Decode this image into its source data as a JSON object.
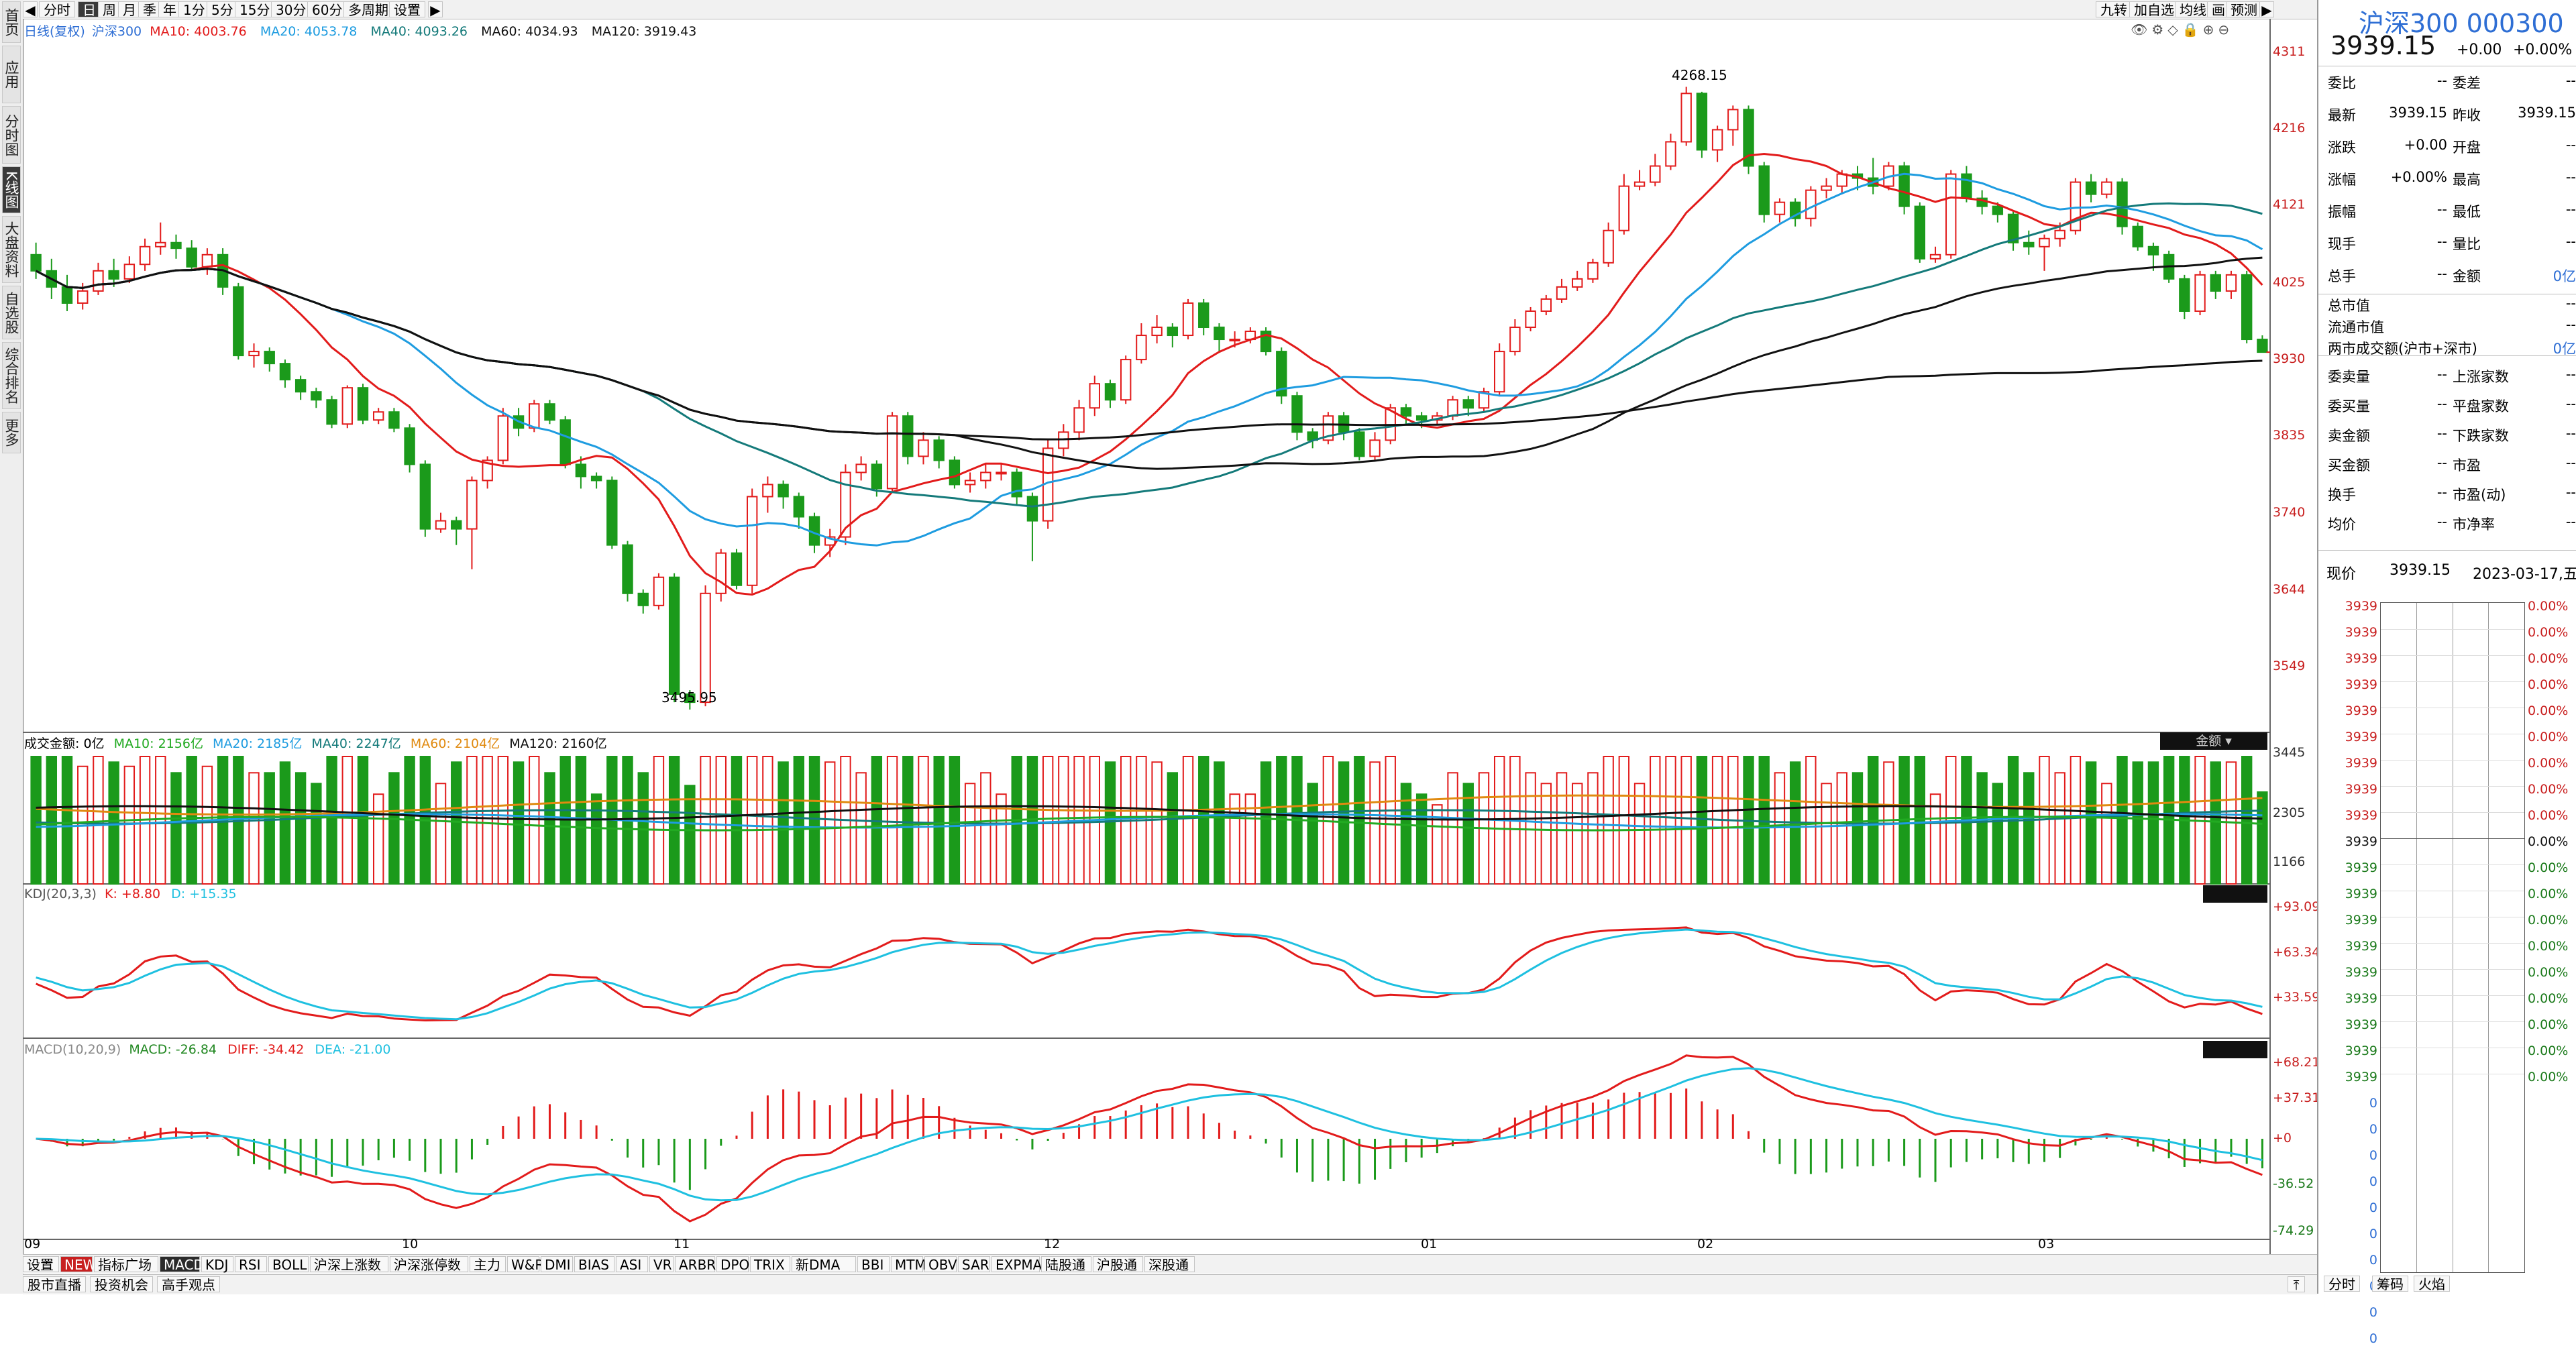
{
  "sidebar": {
    "items": [
      {
        "label": "首页"
      },
      {
        "label": "应用"
      },
      {
        "label": "分时图"
      },
      {
        "label": "K线图"
      },
      {
        "label": "大盘资料"
      },
      {
        "label": "自选股"
      },
      {
        "label": "综合排名"
      },
      {
        "label": "更多"
      }
    ]
  },
  "toolbar": {
    "left": [
      "分时",
      "日",
      "周",
      "月",
      "季",
      "年",
      "1分",
      "5分",
      "15分",
      "30分",
      "60分",
      "多周期",
      "设置"
    ],
    "right": [
      "九转",
      "加自选",
      "均线",
      "画",
      "预测"
    ]
  },
  "main_chart": {
    "header": {
      "mode": "日线(复权)",
      "name": "沪深300",
      "ma10": "MA10: 4003.76",
      "ma20": "MA20: 4053.78",
      "ma40": "MA40: 4093.26",
      "ma60": "MA60: 4034.93",
      "ma120": "MA120: 3919.43"
    },
    "high_label": "4268.15",
    "low_label": "3495.95",
    "y_ticks": [
      "4311",
      "4216",
      "4121",
      "4025",
      "3930",
      "3835",
      "3740",
      "3644",
      "3549"
    ],
    "last_price_label": "3939.15"
  },
  "volume_panel": {
    "header": {
      "title": "成交金额: 0亿",
      "ma10": "MA10: 2156亿",
      "ma20": "MA20: 2185亿",
      "ma40": "MA40: 2247亿",
      "ma60": "MA60: 2104亿",
      "ma120": "MA120: 2160亿"
    },
    "button": "金额",
    "y_ticks": [
      "3445",
      "2305",
      "1166"
    ]
  },
  "kdj_panel": {
    "header": {
      "title": "KDJ(20,3,3)",
      "k": "K: +8.80",
      "d": "D: +15.35"
    },
    "y_ticks": [
      "+93.09",
      "+63.34",
      "+33.59"
    ]
  },
  "macd_panel": {
    "header": {
      "title": "MACD(10,20,9)",
      "macd": "MACD: -26.84",
      "diff": "DIFF: -34.42",
      "dea": "DEA: -21.00"
    },
    "y_ticks": [
      "+68.21",
      "+37.31",
      "+0",
      "-36.52",
      "-74.29"
    ]
  },
  "x_axis": [
    "09",
    "10",
    "11",
    "12",
    "01",
    "02",
    "03"
  ],
  "indicator_tabs": [
    "设置",
    "NEW",
    "指标广场",
    "MACD",
    "KDJ",
    "RSI",
    "BOLL",
    "沪深上涨数",
    "沪深涨停数",
    "主力",
    "W&R",
    "DMI",
    "BIAS",
    "ASI",
    "VR",
    "ARBR",
    "DPO",
    "TRIX",
    "新DMA",
    "BBI",
    "MTM",
    "OBV",
    "SAR",
    "EXPMA",
    "陆股通",
    "沪股通",
    "深股通"
  ],
  "bottom_bar": [
    "股市直播",
    "投资机会",
    "高手观点"
  ],
  "right_panel": {
    "title": "沪深300 000300",
    "price": "3939.15",
    "change": "+0.00",
    "change_pct": "+0.00%",
    "rows": [
      {
        "l1": "委比",
        "v1": "--",
        "l2": "委差",
        "v2": "--"
      },
      {
        "l1": "最新",
        "v1": "3939.15",
        "l2": "昨收",
        "v2": "3939.15"
      },
      {
        "l1": "涨跌",
        "v1": "+0.00",
        "l2": "开盘",
        "v2": "--"
      },
      {
        "l1": "涨幅",
        "v1": "+0.00%",
        "l2": "最高",
        "v2": "--"
      },
      {
        "l1": "振幅",
        "v1": "--",
        "l2": "最低",
        "v2": "--"
      },
      {
        "l1": "现手",
        "v1": "--",
        "l2": "量比",
        "v2": "--"
      },
      {
        "l1": "总手",
        "v1": "--",
        "l2": "金额",
        "v2": "0亿"
      }
    ],
    "rows2": [
      {
        "l": "总市值",
        "v": "--"
      },
      {
        "l": "流通市值",
        "v": "--"
      },
      {
        "l": "两市成交额(沪市+深市)",
        "v": "0亿"
      }
    ],
    "rows3": [
      {
        "l1": "委卖量",
        "v1": "--",
        "l2": "上涨家数",
        "v2": "--"
      },
      {
        "l1": "委买量",
        "v1": "--",
        "l2": "平盘家数",
        "v2": "--"
      },
      {
        "l1": "卖金额",
        "v1": "--",
        "l2": "下跌家数",
        "v2": "--"
      },
      {
        "l1": "买金额",
        "v1": "--",
        "l2": "市盈",
        "v2": "--"
      },
      {
        "l1": "换手",
        "v1": "--",
        "l2": "市盈(动)",
        "v2": "--"
      },
      {
        "l1": "均价",
        "v1": "--",
        "l2": "市净率",
        "v2": "--"
      }
    ],
    "mini_header": {
      "label": "现价",
      "price": "3939.15",
      "date": "2023-03-17,五"
    },
    "mini_left_ticks": [
      "3939",
      "3939",
      "3939",
      "3939",
      "3939",
      "3939",
      "3939",
      "3939",
      "3939",
      "3939",
      "3939",
      "3939",
      "3939",
      "3939",
      "3939",
      "3939",
      "3939",
      "3939",
      "3939",
      "0",
      "0",
      "0",
      "0",
      "0",
      "0",
      "0",
      "0",
      "0",
      "0"
    ],
    "mini_right_ticks": [
      "0.00%",
      "0.00%",
      "0.00%",
      "0.00%",
      "0.00%",
      "0.00%",
      "0.00%",
      "0.00%",
      "0.00%",
      "0.00%",
      "0.00%",
      "0.00%",
      "0.00%",
      "0.00%",
      "0.00%",
      "0.00%",
      "0.00%",
      "0.00%",
      "0.00%"
    ],
    "bottom_tabs": [
      "分时",
      "筹码",
      "火焰"
    ]
  },
  "chart_data": {
    "type": "candlestick",
    "x_months": [
      "09",
      "10",
      "11",
      "12",
      "01",
      "02",
      "03"
    ],
    "ylim": [
      3495.95,
      4311
    ],
    "candles": [
      [
        4060,
        4040,
        4075,
        4030
      ],
      [
        4040,
        4020,
        4055,
        4005
      ],
      [
        4020,
        4000,
        4035,
        3990
      ],
      [
        4000,
        4015,
        4025,
        3992
      ],
      [
        4015,
        4040,
        4050,
        4010
      ],
      [
        4040,
        4030,
        4055,
        4020
      ],
      [
        4030,
        4048,
        4058,
        4025
      ],
      [
        4048,
        4070,
        4080,
        4040
      ],
      [
        4070,
        4075,
        4100,
        4060
      ],
      [
        4075,
        4068,
        4085,
        4055
      ],
      [
        4068,
        4045,
        4078,
        4040
      ],
      [
        4045,
        4060,
        4068,
        4035
      ],
      [
        4060,
        4020,
        4068,
        4010
      ],
      [
        4020,
        3935,
        4025,
        3930
      ],
      [
        3935,
        3940,
        3950,
        3920
      ],
      [
        3940,
        3925,
        3945,
        3915
      ],
      [
        3925,
        3905,
        3930,
        3895
      ],
      [
        3905,
        3890,
        3910,
        3880
      ],
      [
        3890,
        3880,
        3895,
        3870
      ],
      [
        3880,
        3850,
        3885,
        3845
      ],
      [
        3850,
        3895,
        3898,
        3845
      ],
      [
        3895,
        3855,
        3900,
        3850
      ],
      [
        3855,
        3865,
        3870,
        3850
      ],
      [
        3865,
        3845,
        3870,
        3840
      ],
      [
        3845,
        3800,
        3850,
        3790
      ],
      [
        3800,
        3720,
        3805,
        3710
      ],
      [
        3720,
        3730,
        3740,
        3715
      ],
      [
        3730,
        3720,
        3735,
        3700
      ],
      [
        3720,
        3780,
        3785,
        3670
      ],
      [
        3780,
        3805,
        3810,
        3770
      ],
      [
        3805,
        3860,
        3870,
        3800
      ],
      [
        3860,
        3845,
        3870,
        3835
      ],
      [
        3845,
        3875,
        3880,
        3840
      ],
      [
        3875,
        3855,
        3880,
        3850
      ],
      [
        3855,
        3800,
        3860,
        3795
      ],
      [
        3800,
        3785,
        3810,
        3770
      ],
      [
        3785,
        3780,
        3790,
        3770
      ],
      [
        3780,
        3700,
        3785,
        3695
      ],
      [
        3700,
        3640,
        3705,
        3630
      ],
      [
        3640,
        3625,
        3645,
        3615
      ],
      [
        3625,
        3660,
        3665,
        3620
      ],
      [
        3660,
        3515,
        3665,
        3505
      ],
      [
        3515,
        3505,
        3520,
        3495.95
      ],
      [
        3505,
        3640,
        3650,
        3500
      ],
      [
        3640,
        3690,
        3695,
        3630
      ],
      [
        3690,
        3650,
        3695,
        3645
      ],
      [
        3650,
        3760,
        3770,
        3640
      ],
      [
        3760,
        3775,
        3785,
        3740
      ],
      [
        3775,
        3760,
        3780,
        3745
      ],
      [
        3760,
        3735,
        3765,
        3720
      ],
      [
        3735,
        3700,
        3740,
        3690
      ],
      [
        3700,
        3710,
        3720,
        3685
      ],
      [
        3710,
        3790,
        3800,
        3700
      ],
      [
        3790,
        3800,
        3810,
        3780
      ],
      [
        3800,
        3770,
        3805,
        3760
      ],
      [
        3770,
        3860,
        3865,
        3765
      ],
      [
        3860,
        3810,
        3865,
        3800
      ],
      [
        3810,
        3830,
        3840,
        3800
      ],
      [
        3830,
        3805,
        3835,
        3795
      ],
      [
        3805,
        3775,
        3810,
        3770
      ],
      [
        3775,
        3780,
        3790,
        3765
      ],
      [
        3780,
        3790,
        3800,
        3770
      ],
      [
        3790,
        3790,
        3800,
        3780
      ],
      [
        3790,
        3760,
        3795,
        3750
      ],
      [
        3760,
        3730,
        3765,
        3680
      ],
      [
        3730,
        3820,
        3830,
        3720
      ],
      [
        3820,
        3840,
        3850,
        3810
      ],
      [
        3840,
        3870,
        3880,
        3830
      ],
      [
        3870,
        3900,
        3910,
        3860
      ],
      [
        3900,
        3880,
        3905,
        3870
      ],
      [
        3880,
        3930,
        3935,
        3875
      ],
      [
        3930,
        3960,
        3975,
        3925
      ],
      [
        3960,
        3970,
        3985,
        3950
      ],
      [
        3970,
        3960,
        3975,
        3945
      ],
      [
        3960,
        4000,
        4005,
        3955
      ],
      [
        4000,
        3970,
        4005,
        3960
      ],
      [
        3970,
        3955,
        3975,
        3940
      ],
      [
        3955,
        3955,
        3965,
        3945
      ],
      [
        3955,
        3965,
        3970,
        3950
      ],
      [
        3965,
        3940,
        3970,
        3935
      ],
      [
        3940,
        3885,
        3945,
        3875
      ],
      [
        3885,
        3840,
        3890,
        3830
      ],
      [
        3840,
        3830,
        3845,
        3820
      ],
      [
        3830,
        3860,
        3865,
        3825
      ],
      [
        3860,
        3840,
        3865,
        3830
      ],
      [
        3840,
        3810,
        3845,
        3805
      ],
      [
        3810,
        3830,
        3840,
        3805
      ],
      [
        3830,
        3870,
        3875,
        3825
      ],
      [
        3870,
        3860,
        3875,
        3850
      ],
      [
        3860,
        3855,
        3865,
        3845
      ],
      [
        3855,
        3860,
        3865,
        3850
      ],
      [
        3860,
        3880,
        3885,
        3855
      ],
      [
        3880,
        3870,
        3885,
        3860
      ],
      [
        3870,
        3890,
        3895,
        3865
      ],
      [
        3890,
        3940,
        3950,
        3885
      ],
      [
        3940,
        3970,
        3980,
        3935
      ],
      [
        3970,
        3990,
        3995,
        3965
      ],
      [
        3990,
        4005,
        4010,
        3985
      ],
      [
        4005,
        4020,
        4030,
        4000
      ],
      [
        4020,
        4030,
        4040,
        4015
      ],
      [
        4030,
        4050,
        4055,
        4025
      ],
      [
        4050,
        4090,
        4100,
        4045
      ],
      [
        4090,
        4145,
        4160,
        4085
      ],
      [
        4145,
        4150,
        4165,
        4140
      ],
      [
        4150,
        4170,
        4185,
        4145
      ],
      [
        4170,
        4200,
        4210,
        4165
      ],
      [
        4200,
        4260,
        4268.15,
        4195
      ],
      [
        4260,
        4190,
        4262,
        4180
      ],
      [
        4190,
        4215,
        4220,
        4175
      ],
      [
        4215,
        4240,
        4245,
        4195
      ],
      [
        4240,
        4170,
        4245,
        4160
      ],
      [
        4170,
        4110,
        4175,
        4100
      ],
      [
        4110,
        4125,
        4130,
        4100
      ],
      [
        4125,
        4105,
        4130,
        4095
      ],
      [
        4105,
        4140,
        4145,
        4095
      ],
      [
        4140,
        4145,
        4155,
        4130
      ],
      [
        4145,
        4160,
        4165,
        4135
      ],
      [
        4160,
        4155,
        4170,
        4140
      ],
      [
        4155,
        4145,
        4180,
        4135
      ],
      [
        4145,
        4170,
        4175,
        4140
      ],
      [
        4170,
        4120,
        4175,
        4110
      ],
      [
        4120,
        4055,
        4125,
        4050
      ],
      [
        4055,
        4060,
        4070,
        4050
      ],
      [
        4060,
        4160,
        4165,
        4055
      ],
      [
        4160,
        4130,
        4170,
        4125
      ],
      [
        4130,
        4120,
        4140,
        4110
      ],
      [
        4120,
        4110,
        4125,
        4100
      ],
      [
        4110,
        4075,
        4115,
        4065
      ],
      [
        4075,
        4070,
        4090,
        4060
      ],
      [
        4070,
        4080,
        4085,
        4040
      ],
      [
        4080,
        4090,
        4100,
        4070
      ],
      [
        4090,
        4150,
        4155,
        4085
      ],
      [
        4150,
        4135,
        4160,
        4125
      ],
      [
        4135,
        4150,
        4155,
        4130
      ],
      [
        4150,
        4095,
        4155,
        4085
      ],
      [
        4095,
        4070,
        4100,
        4065
      ],
      [
        4070,
        4060,
        4075,
        4040
      ],
      [
        4060,
        4030,
        4065,
        4025
      ],
      [
        4030,
        3990,
        4035,
        3980
      ],
      [
        3990,
        4035,
        4040,
        3985
      ],
      [
        4035,
        4015,
        4040,
        4005
      ],
      [
        4015,
        4035,
        4040,
        4005
      ],
      [
        4035,
        3955,
        4040,
        3950
      ],
      [
        3955,
        3939.15,
        3960,
        3939
      ]
    ]
  }
}
